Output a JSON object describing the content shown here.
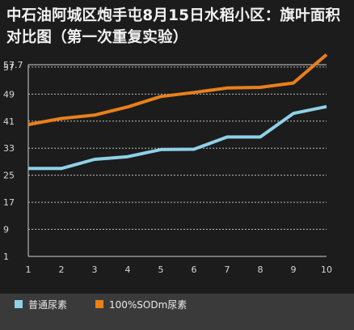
{
  "chart_data": {
    "type": "line",
    "title": "中石油阿城区炮手屯8月15日水稻小区：旗叶面积对比图（第一次重复实验）",
    "x": [
      1,
      2,
      3,
      4,
      5,
      6,
      7,
      8,
      9,
      10
    ],
    "ylim": [
      1,
      57.7
    ],
    "yticks": [
      1,
      9,
      17,
      25,
      33,
      41,
      49,
      57,
      57.7
    ],
    "grid": "horizontal dashed",
    "legend_position": "bottom",
    "series": [
      {
        "name": "普通尿素",
        "color": "#8fd0e8",
        "values": [
          27.0,
          27.0,
          29.7,
          30.5,
          32.6,
          32.7,
          36.3,
          36.3,
          43.3,
          45.3
        ]
      },
      {
        "name": "100%SODm尿素",
        "color": "#e8801c",
        "values": [
          40.0,
          41.8,
          42.8,
          45.2,
          48.3,
          49.5,
          50.8,
          51.0,
          52.3,
          60.7
        ]
      }
    ]
  }
}
